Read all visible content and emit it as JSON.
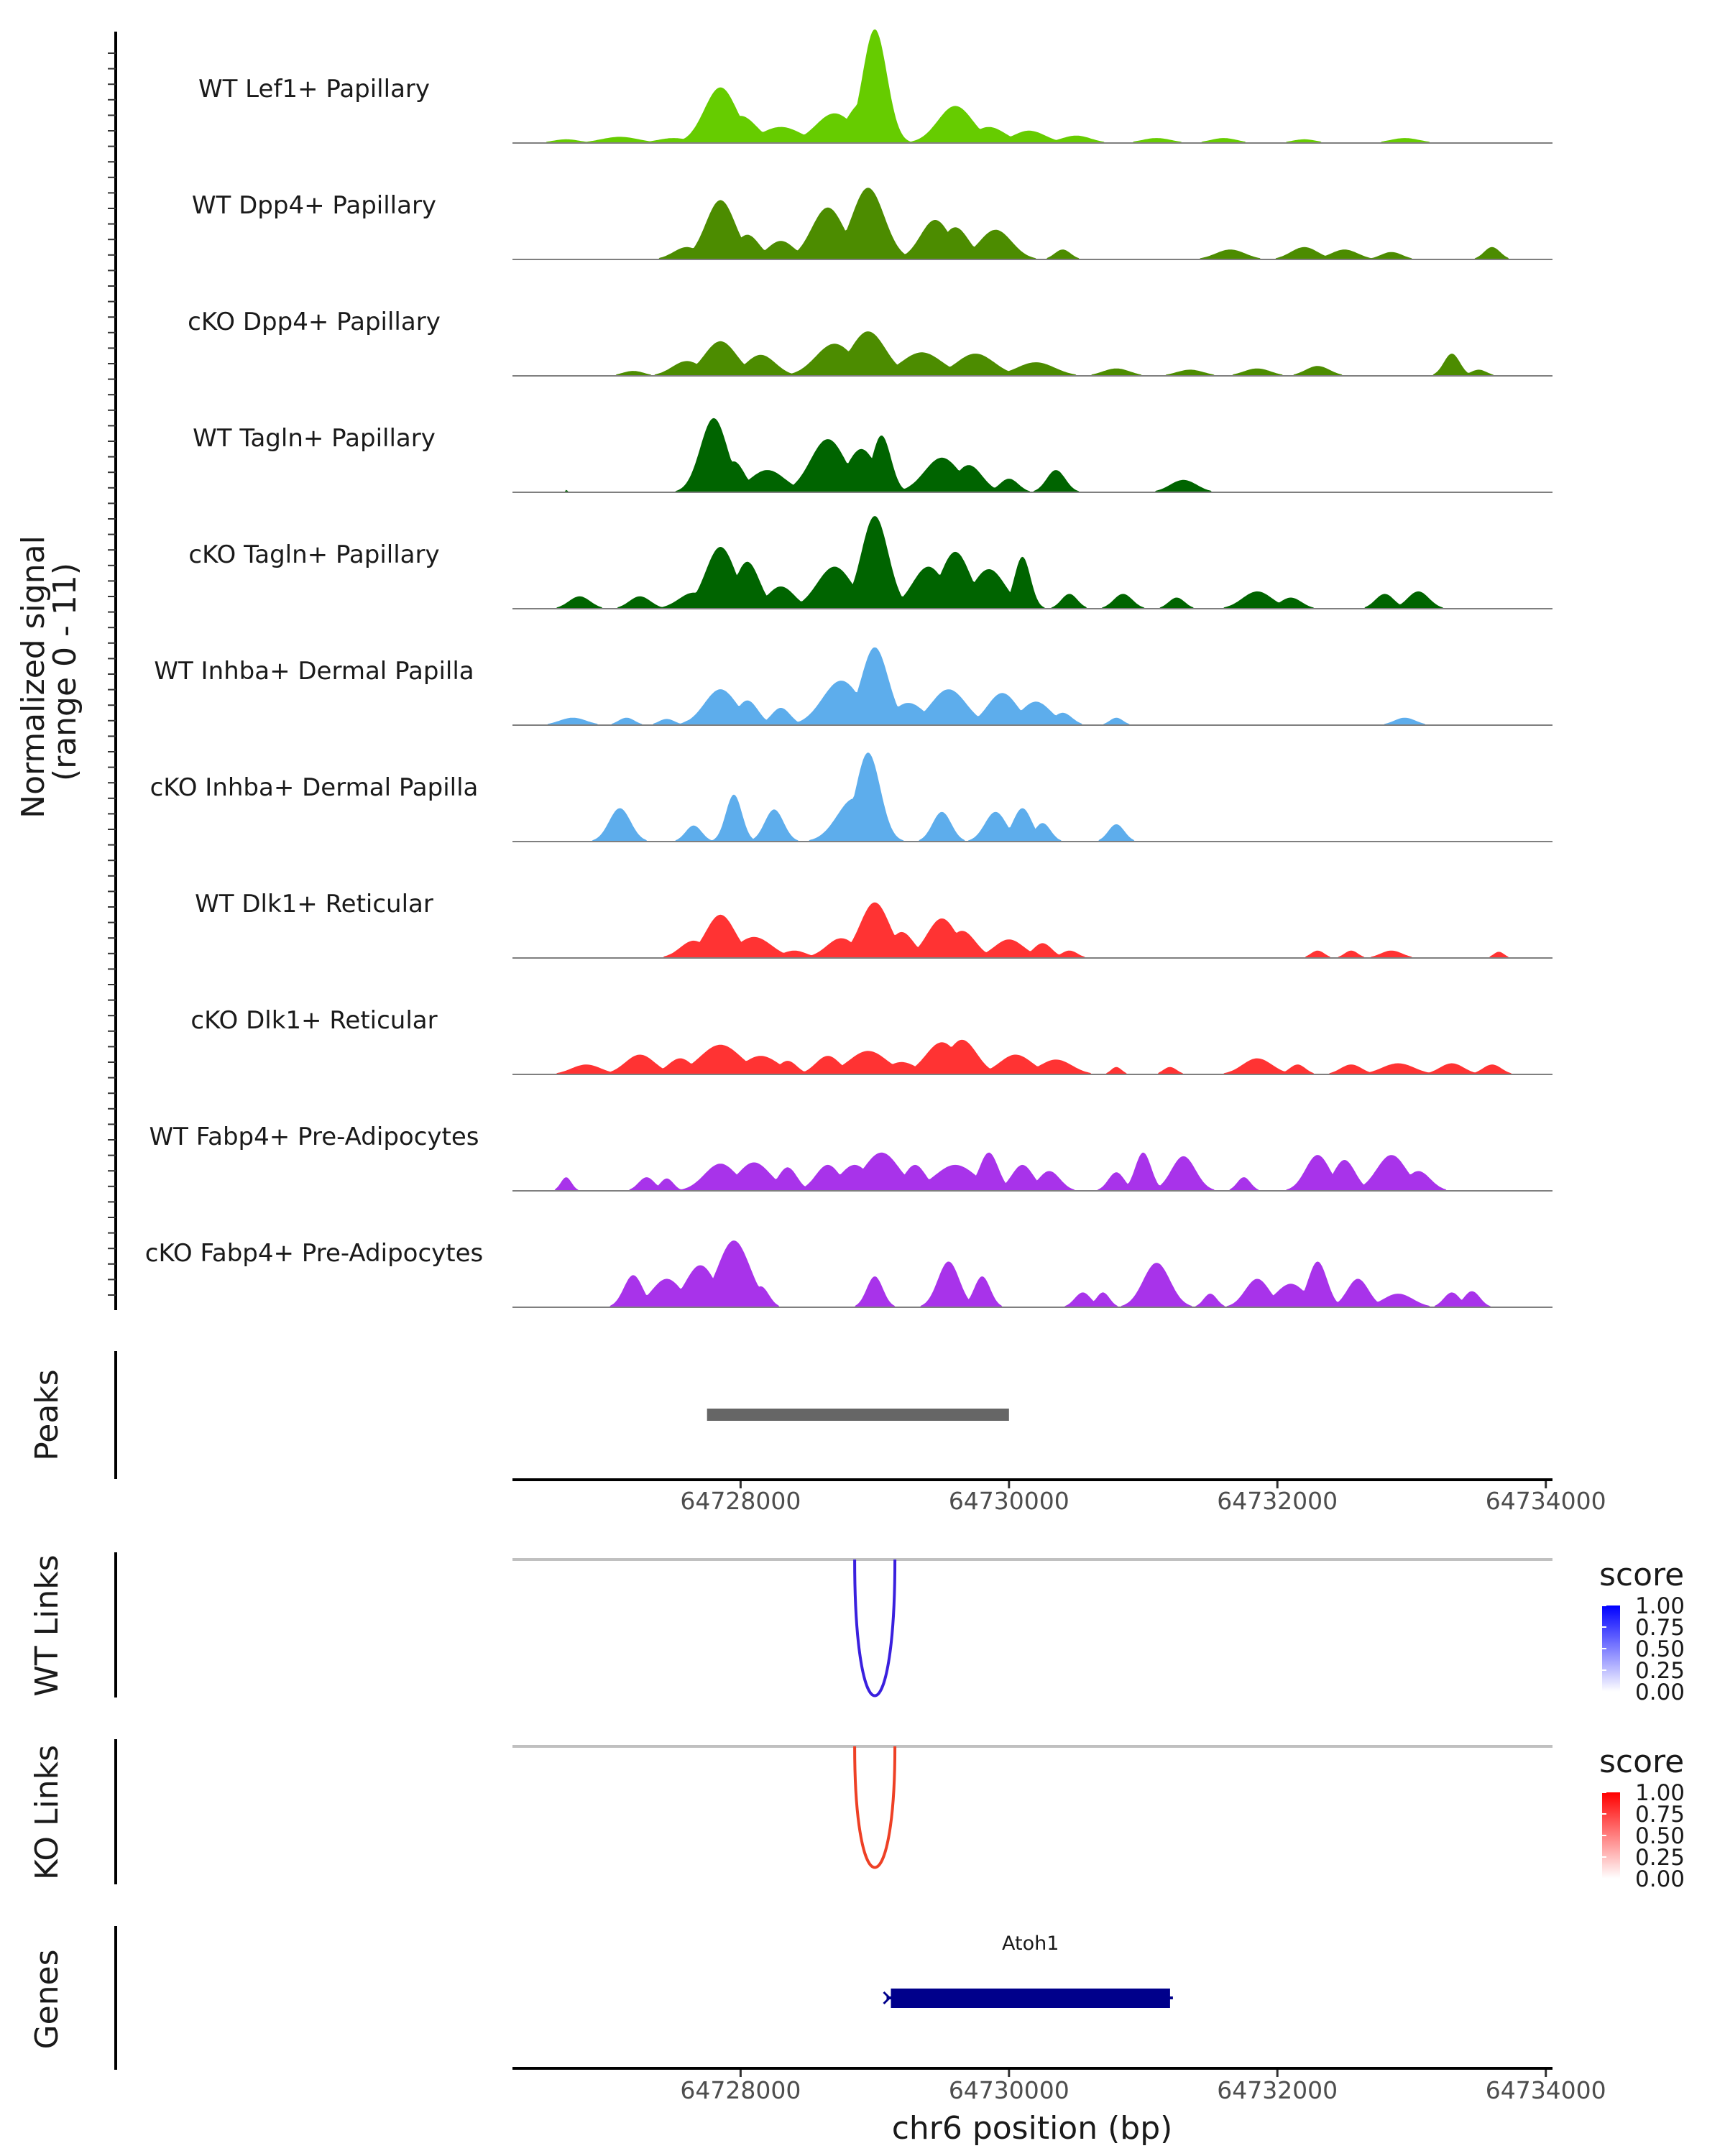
{
  "chart_data": {
    "type": "area",
    "title": "",
    "chromosome": "chr6",
    "xlim": [
      64726300,
      64734050
    ],
    "coverage": {
      "ylabel": "Normalized signal\n(range 0 - 11)",
      "ylabel_lines": [
        "Normalized signal",
        "(range 0 - 11)"
      ],
      "ylim": [
        0,
        11
      ],
      "tracks": [
        {
          "name": "WT Lef1+ Papillary",
          "color": "#66CC00",
          "peaks": [
            [
              64726700,
              100,
              0.3
            ],
            [
              64727100,
              140,
              0.5
            ],
            [
              64727500,
              120,
              0.4
            ],
            [
              64727850,
              120,
              4.5
            ],
            [
              64728000,
              120,
              2.2
            ],
            [
              64728300,
              150,
              1.3
            ],
            [
              64728700,
              140,
              2.4
            ],
            [
              64728900,
              110,
              3.2
            ],
            [
              64729000,
              90,
              9.2
            ],
            [
              64729600,
              130,
              3.0
            ],
            [
              64729850,
              120,
              1.3
            ],
            [
              64730150,
              120,
              1.0
            ],
            [
              64730500,
              110,
              0.6
            ],
            [
              64731100,
              110,
              0.4
            ],
            [
              64731600,
              100,
              0.4
            ],
            [
              64732200,
              90,
              0.3
            ],
            [
              64732950,
              110,
              0.4
            ]
          ]
        },
        {
          "name": "WT Dpp4+ Papillary",
          "color": "#4C8C00",
          "peaks": [
            [
              64727600,
              100,
              1.0
            ],
            [
              64727850,
              110,
              4.8
            ],
            [
              64728050,
              90,
              2.0
            ],
            [
              64728300,
              100,
              1.5
            ],
            [
              64728650,
              120,
              4.2
            ],
            [
              64728950,
              120,
              5.8
            ],
            [
              64729450,
              110,
              3.2
            ],
            [
              64729600,
              100,
              2.6
            ],
            [
              64729900,
              120,
              2.4
            ],
            [
              64730400,
              60,
              0.8
            ],
            [
              64731650,
              110,
              0.8
            ],
            [
              64732200,
              100,
              1.0
            ],
            [
              64732500,
              100,
              0.8
            ],
            [
              64732850,
              80,
              0.6
            ],
            [
              64733600,
              60,
              1.0
            ]
          ]
        },
        {
          "name": "cKO Dpp4+ Papillary",
          "color": "#4C8C00",
          "peaks": [
            [
              64727200,
              80,
              0.4
            ],
            [
              64727600,
              110,
              1.2
            ],
            [
              64727850,
              120,
              2.8
            ],
            [
              64728150,
              110,
              1.7
            ],
            [
              64728700,
              140,
              2.6
            ],
            [
              64728950,
              130,
              3.6
            ],
            [
              64729350,
              150,
              1.9
            ],
            [
              64729750,
              140,
              1.8
            ],
            [
              64730200,
              140,
              1.1
            ],
            [
              64730800,
              100,
              0.6
            ],
            [
              64731350,
              100,
              0.5
            ],
            [
              64731850,
              100,
              0.6
            ],
            [
              64732300,
              90,
              0.8
            ],
            [
              64733300,
              60,
              1.8
            ],
            [
              64733500,
              60,
              0.5
            ]
          ]
        },
        {
          "name": "WT Tagln+ Papillary",
          "color": "#006400",
          "peaks": [
            [
              64726700,
              10,
              0.2
            ],
            [
              64727800,
              100,
              6.0
            ],
            [
              64727950,
              80,
              2.5
            ],
            [
              64728200,
              130,
              1.8
            ],
            [
              64728650,
              130,
              4.3
            ],
            [
              64728900,
              110,
              3.5
            ],
            [
              64729050,
              70,
              4.6
            ],
            [
              64729500,
              130,
              2.8
            ],
            [
              64729700,
              100,
              2.2
            ],
            [
              64730000,
              70,
              1.1
            ],
            [
              64730350,
              70,
              1.8
            ],
            [
              64731300,
              100,
              1.0
            ]
          ]
        },
        {
          "name": "cKO Tagln+ Papillary",
          "color": "#006400",
          "peaks": [
            [
              64726800,
              80,
              1.0
            ],
            [
              64727250,
              80,
              1.0
            ],
            [
              64727650,
              110,
              1.3
            ],
            [
              64727850,
              110,
              5.0
            ],
            [
              64728050,
              90,
              3.8
            ],
            [
              64728300,
              100,
              1.8
            ],
            [
              64728700,
              130,
              3.4
            ],
            [
              64729000,
              100,
              7.5
            ],
            [
              64729400,
              120,
              3.4
            ],
            [
              64729600,
              110,
              4.6
            ],
            [
              64729850,
              120,
              3.2
            ],
            [
              64730100,
              60,
              4.2
            ],
            [
              64730450,
              60,
              1.2
            ],
            [
              64730850,
              70,
              1.2
            ],
            [
              64731250,
              60,
              0.9
            ],
            [
              64731850,
              110,
              1.4
            ],
            [
              64732100,
              80,
              0.9
            ],
            [
              64732800,
              70,
              1.2
            ],
            [
              64733050,
              80,
              1.4
            ]
          ]
        },
        {
          "name": "WT Inhba+ Dermal Papilla",
          "color": "#5DADEC",
          "peaks": [
            [
              64726750,
              100,
              0.6
            ],
            [
              64727150,
              60,
              0.6
            ],
            [
              64727450,
              60,
              0.5
            ],
            [
              64727650,
              60,
              0.5
            ],
            [
              64727850,
              120,
              2.9
            ],
            [
              64728050,
              80,
              2.0
            ],
            [
              64728300,
              70,
              1.4
            ],
            [
              64728750,
              140,
              3.6
            ],
            [
              64729000,
              100,
              6.3
            ],
            [
              64729250,
              120,
              1.8
            ],
            [
              64729550,
              130,
              2.9
            ],
            [
              64729950,
              110,
              2.6
            ],
            [
              64730200,
              110,
              1.9
            ],
            [
              64730400,
              70,
              1.0
            ],
            [
              64730800,
              50,
              0.6
            ],
            [
              64732950,
              80,
              0.6
            ]
          ]
        },
        {
          "name": "cKO Inhba+ Dermal Papilla",
          "color": "#5DADEC",
          "peaks": [
            [
              64727100,
              80,
              2.7
            ],
            [
              64727650,
              60,
              1.3
            ],
            [
              64727950,
              60,
              3.8
            ],
            [
              64728250,
              70,
              2.6
            ],
            [
              64728850,
              130,
              3.5
            ],
            [
              64728950,
              90,
              7.2
            ],
            [
              64729500,
              70,
              2.4
            ],
            [
              64729900,
              80,
              2.4
            ],
            [
              64730100,
              70,
              2.7
            ],
            [
              64730250,
              60,
              1.5
            ],
            [
              64730800,
              60,
              1.4
            ]
          ]
        },
        {
          "name": "WT Dlk1+ Reticular",
          "color": "#FF3333",
          "peaks": [
            [
              64727650,
              100,
              1.4
            ],
            [
              64727850,
              110,
              3.5
            ],
            [
              64728100,
              130,
              1.7
            ],
            [
              64728400,
              90,
              0.6
            ],
            [
              64728750,
              110,
              1.6
            ],
            [
              64729000,
              110,
              4.5
            ],
            [
              64729200,
              90,
              2.1
            ],
            [
              64729500,
              110,
              3.2
            ],
            [
              64729650,
              100,
              2.2
            ],
            [
              64730000,
              110,
              1.5
            ],
            [
              64730250,
              70,
              1.2
            ],
            [
              64730450,
              60,
              0.6
            ],
            [
              64732300,
              50,
              0.6
            ],
            [
              64732550,
              50,
              0.6
            ],
            [
              64732850,
              80,
              0.6
            ],
            [
              64733650,
              40,
              0.5
            ]
          ]
        },
        {
          "name": "cKO Dlk1+ Reticular",
          "color": "#FF3333",
          "peaks": [
            [
              64726850,
              110,
              0.8
            ],
            [
              64727250,
              110,
              1.6
            ],
            [
              64727550,
              90,
              1.3
            ],
            [
              64727850,
              150,
              2.4
            ],
            [
              64728150,
              130,
              1.5
            ],
            [
              64728350,
              70,
              1.1
            ],
            [
              64728650,
              90,
              1.5
            ],
            [
              64728950,
              140,
              1.9
            ],
            [
              64729200,
              110,
              1.0
            ],
            [
              64729500,
              120,
              2.6
            ],
            [
              64729650,
              110,
              2.8
            ],
            [
              64730050,
              120,
              1.6
            ],
            [
              64730350,
              120,
              1.2
            ],
            [
              64730800,
              40,
              0.6
            ],
            [
              64731200,
              50,
              0.6
            ],
            [
              64731850,
              110,
              1.3
            ],
            [
              64732150,
              60,
              0.8
            ],
            [
              64732550,
              80,
              0.8
            ],
            [
              64732900,
              120,
              0.9
            ],
            [
              64733300,
              90,
              0.9
            ],
            [
              64733600,
              70,
              0.8
            ]
          ]
        },
        {
          "name": "WT Fabp4+ Pre-Adipocytes",
          "color": "#A833EA",
          "peaks": [
            [
              64726700,
              40,
              1.1
            ],
            [
              64727300,
              60,
              1.1
            ],
            [
              64727450,
              50,
              1.0
            ],
            [
              64727850,
              120,
              2.2
            ],
            [
              64728100,
              120,
              2.3
            ],
            [
              64728350,
              70,
              1.9
            ],
            [
              64728650,
              90,
              2.1
            ],
            [
              64728850,
              110,
              2.1
            ],
            [
              64729050,
              130,
              3.1
            ],
            [
              64729300,
              80,
              2.1
            ],
            [
              64729600,
              150,
              2.1
            ],
            [
              64729850,
              70,
              3.1
            ],
            [
              64730100,
              80,
              2.1
            ],
            [
              64730300,
              80,
              1.6
            ],
            [
              64730800,
              60,
              1.5
            ],
            [
              64731000,
              60,
              3.1
            ],
            [
              64731300,
              90,
              2.8
            ],
            [
              64731750,
              50,
              1.1
            ],
            [
              64732300,
              90,
              2.9
            ],
            [
              64732500,
              80,
              2.5
            ],
            [
              64732850,
              110,
              2.9
            ],
            [
              64733050,
              90,
              1.6
            ]
          ]
        },
        {
          "name": "cKO Fabp4+ Pre-Adipocytes",
          "color": "#A833EA",
          "peaks": [
            [
              64727200,
              70,
              2.6
            ],
            [
              64727450,
              110,
              2.3
            ],
            [
              64727700,
              110,
              3.4
            ],
            [
              64727950,
              120,
              5.4
            ],
            [
              64728150,
              60,
              1.7
            ],
            [
              64729000,
              60,
              2.5
            ],
            [
              64729550,
              80,
              3.7
            ],
            [
              64729800,
              60,
              2.5
            ],
            [
              64730550,
              60,
              1.2
            ],
            [
              64730700,
              50,
              1.2
            ],
            [
              64731100,
              100,
              3.6
            ],
            [
              64731500,
              50,
              1.1
            ],
            [
              64731850,
              90,
              2.3
            ],
            [
              64732100,
              110,
              1.9
            ],
            [
              64732300,
              70,
              3.7
            ],
            [
              64732600,
              80,
              2.3
            ],
            [
              64732900,
              110,
              1.1
            ],
            [
              64733300,
              60,
              1.2
            ],
            [
              64733450,
              60,
              1.3
            ]
          ]
        }
      ]
    },
    "peaks_panel": {
      "label": "Peaks",
      "peaks": [
        {
          "start": 64727750,
          "end": 64730000
        }
      ],
      "color": "#666666"
    },
    "x_axis_ticks": [
      64728000,
      64730000,
      64732000,
      64734000
    ],
    "x_tick_labels": [
      "64728000",
      "64730000",
      "64732000",
      "64734000"
    ],
    "links_panels": [
      {
        "label": "WT Links",
        "color": "#3A20DE",
        "start": 64728850,
        "end": 64729150,
        "score": 0.9,
        "legend": {
          "title": "score",
          "ticks": [
            "1.00",
            "0.75",
            "0.50",
            "0.25",
            "0.00"
          ],
          "low": "#FFFFFF",
          "high": "#0000FF"
        }
      },
      {
        "label": "KO Links",
        "color": "#EE4025",
        "start": 64728850,
        "end": 64729150,
        "score": 0.8,
        "legend": {
          "title": "score",
          "ticks": [
            "1.00",
            "0.75",
            "0.50",
            "0.25",
            "0.00"
          ],
          "low": "#FFFFFF",
          "high": "#FF0000"
        }
      }
    ],
    "genes_panel": {
      "label": "Genes",
      "genes": [
        {
          "name": "Atoh1",
          "start": 64729120,
          "end": 64731200,
          "strand": "+",
          "color": "#00008B"
        }
      ]
    },
    "xlabel": "chr6 position (bp)"
  }
}
